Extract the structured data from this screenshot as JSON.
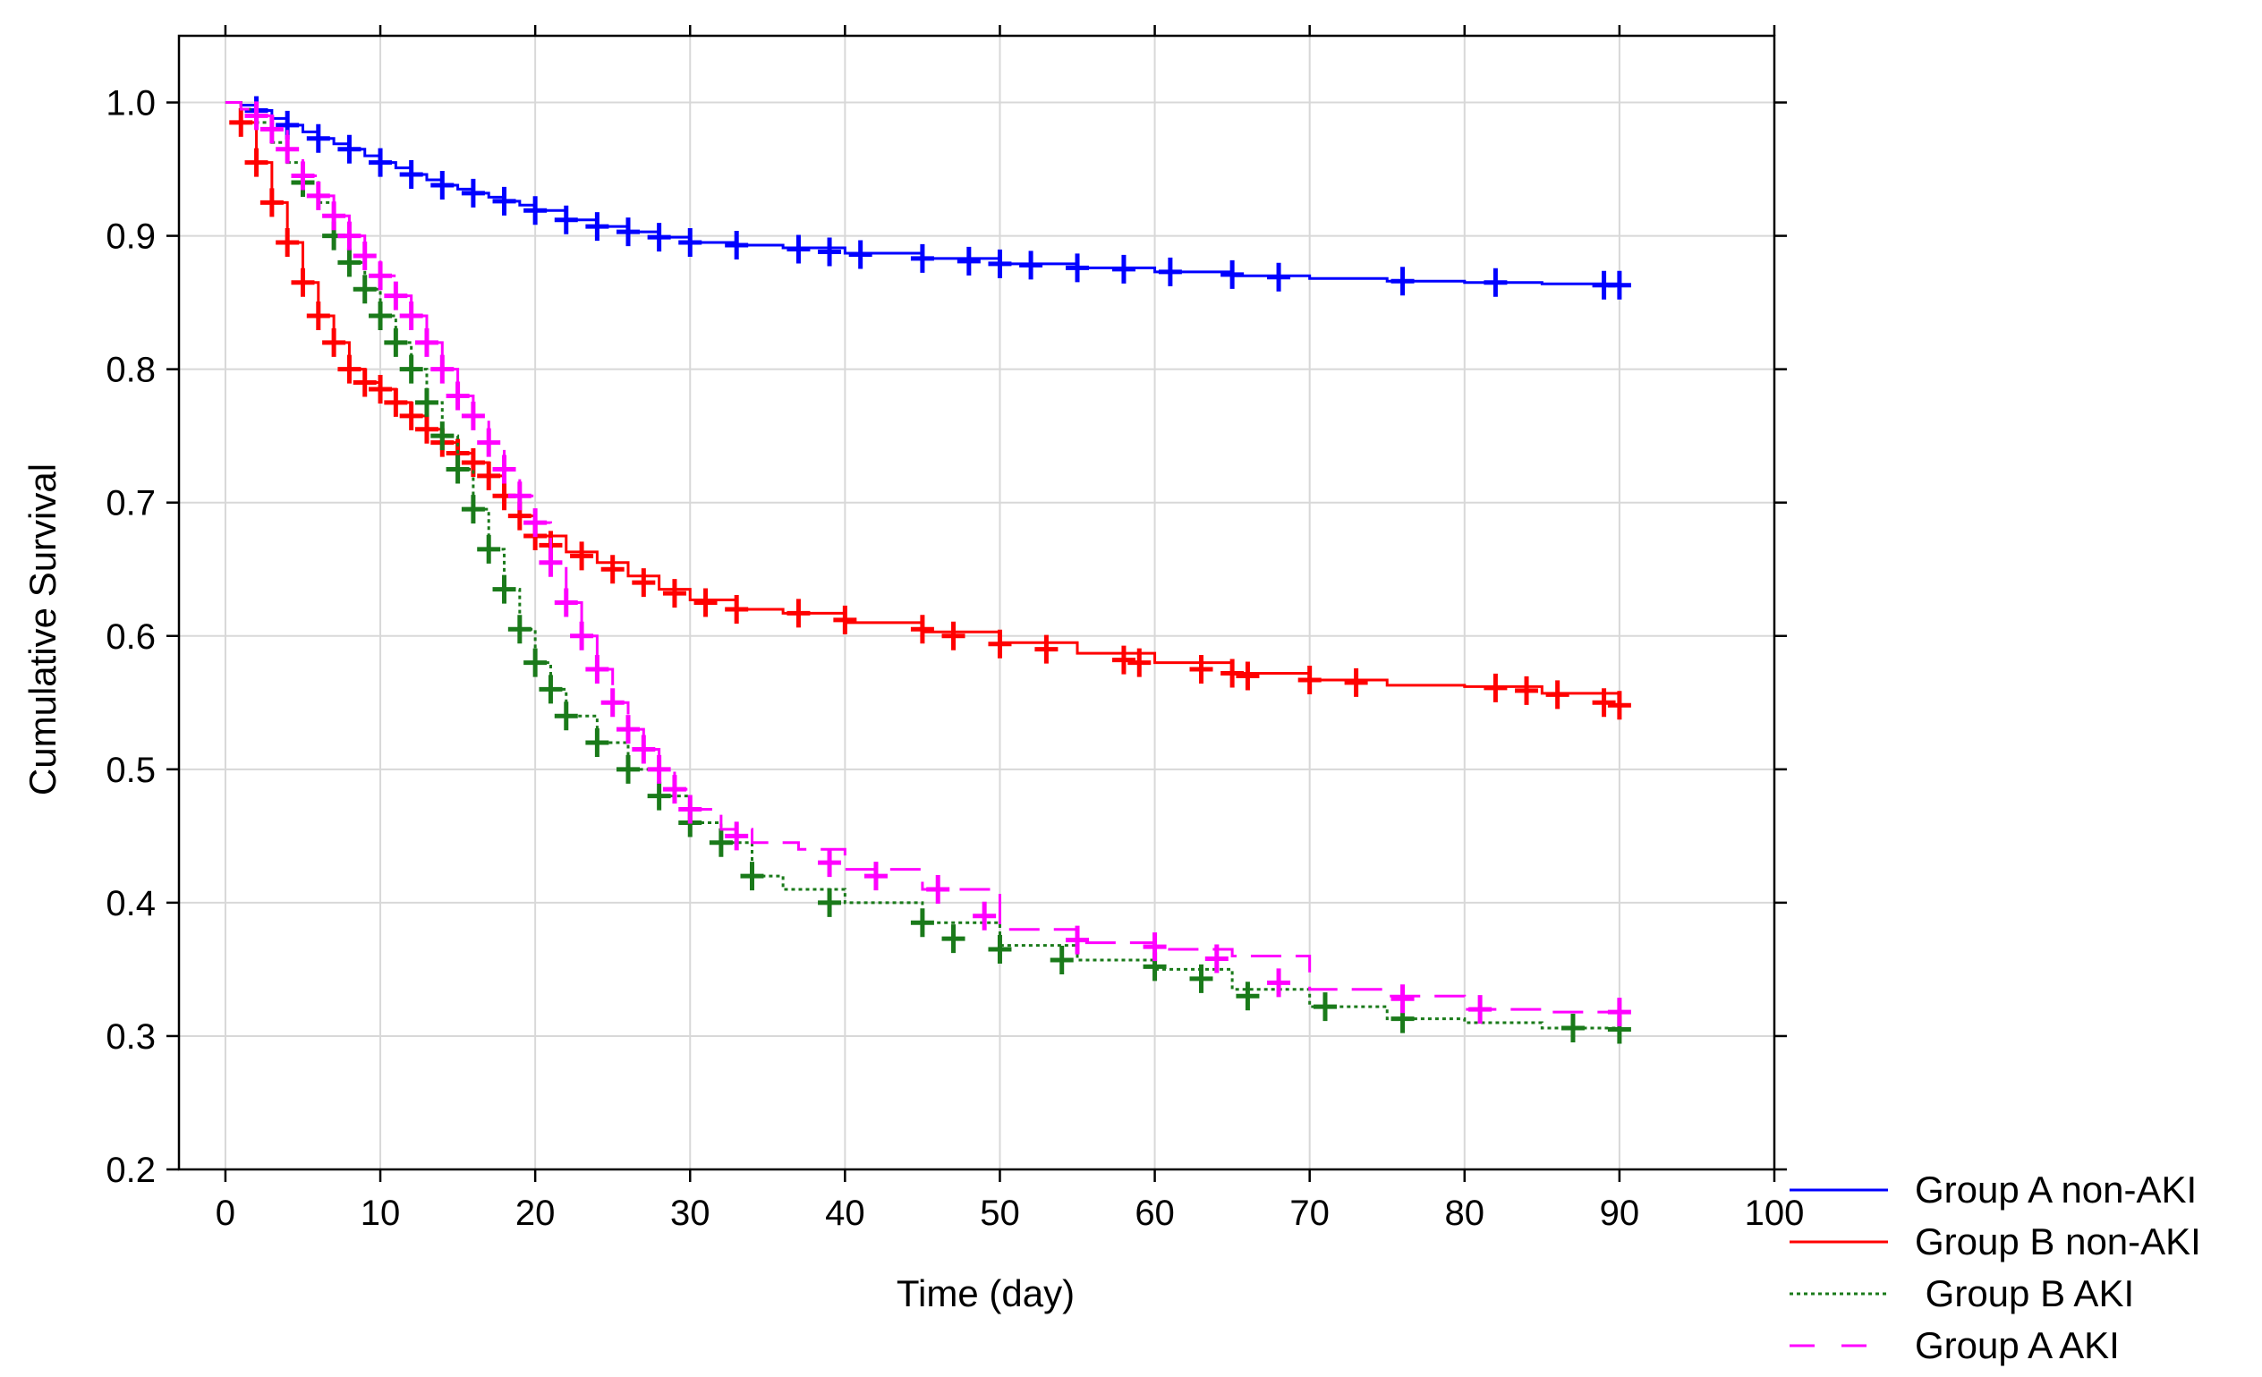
{
  "chart_data": {
    "type": "line",
    "title": "",
    "xlabel": "Time (day)",
    "ylabel": "Cumulative Survival",
    "xlim": [
      -3,
      100
    ],
    "ylim": [
      0.2,
      1.05
    ],
    "xticks": [
      0,
      10,
      20,
      30,
      40,
      50,
      60,
      70,
      80,
      90,
      100
    ],
    "yticks": [
      0.2,
      0.3,
      0.4,
      0.5,
      0.6,
      0.7,
      0.8,
      0.9,
      1.0
    ],
    "xtick_labels": [
      "0",
      "10",
      "20",
      "30",
      "40",
      "50",
      "60",
      "70",
      "80",
      "90",
      "100"
    ],
    "ytick_labels": [
      "0.2",
      "0.3",
      "0.4",
      "0.5",
      "0.6",
      "0.7",
      "0.8",
      "0.9",
      "1.0"
    ],
    "grid": true,
    "legend_position": "bottom-right outside",
    "series": [
      {
        "name": "Group A non-AKI",
        "color": "#0000ff",
        "dash": "solid",
        "x": [
          0,
          1,
          2,
          3,
          4,
          5,
          6,
          7,
          8,
          9,
          10,
          11,
          12,
          13,
          14,
          15,
          16,
          17,
          18,
          19,
          20,
          22,
          24,
          26,
          28,
          30,
          33,
          36,
          40,
          45,
          50,
          55,
          60,
          65,
          70,
          75,
          80,
          85,
          90
        ],
        "y": [
          1.0,
          0.998,
          0.994,
          0.988,
          0.983,
          0.978,
          0.973,
          0.969,
          0.965,
          0.96,
          0.955,
          0.951,
          0.946,
          0.942,
          0.938,
          0.935,
          0.932,
          0.929,
          0.926,
          0.923,
          0.919,
          0.912,
          0.907,
          0.903,
          0.899,
          0.895,
          0.893,
          0.891,
          0.887,
          0.883,
          0.879,
          0.876,
          0.873,
          0.87,
          0.868,
          0.866,
          0.865,
          0.864,
          0.863
        ],
        "censor_x": [
          2,
          4,
          6,
          8,
          10,
          12,
          14,
          16,
          18,
          20,
          22,
          24,
          26,
          28,
          30,
          33,
          37,
          39,
          41,
          45,
          48,
          50,
          52,
          55,
          58,
          61,
          65,
          68,
          76,
          82,
          89,
          90
        ],
        "censor_y": [
          0.994,
          0.983,
          0.973,
          0.965,
          0.955,
          0.946,
          0.938,
          0.932,
          0.926,
          0.919,
          0.912,
          0.907,
          0.903,
          0.899,
          0.895,
          0.893,
          0.89,
          0.888,
          0.886,
          0.883,
          0.881,
          0.879,
          0.878,
          0.876,
          0.875,
          0.873,
          0.871,
          0.869,
          0.866,
          0.865,
          0.863,
          0.863
        ]
      },
      {
        "name": "Group B non-AKI",
        "color": "#ff0000",
        "dash": "solid",
        "x": [
          0,
          1,
          2,
          3,
          4,
          5,
          6,
          7,
          8,
          9,
          10,
          11,
          12,
          13,
          14,
          15,
          16,
          17,
          18,
          19,
          20,
          22,
          24,
          26,
          28,
          30,
          33,
          36,
          40,
          45,
          50,
          55,
          60,
          65,
          70,
          75,
          80,
          85,
          90
        ],
        "y": [
          1.0,
          0.985,
          0.955,
          0.925,
          0.895,
          0.865,
          0.84,
          0.82,
          0.8,
          0.79,
          0.785,
          0.775,
          0.765,
          0.755,
          0.745,
          0.737,
          0.73,
          0.72,
          0.705,
          0.69,
          0.675,
          0.663,
          0.655,
          0.645,
          0.635,
          0.627,
          0.62,
          0.617,
          0.61,
          0.603,
          0.595,
          0.587,
          0.58,
          0.572,
          0.567,
          0.563,
          0.562,
          0.557,
          0.548
        ],
        "censor_x": [
          1,
          2,
          3,
          4,
          5,
          6,
          7,
          8,
          9,
          10,
          11,
          12,
          13,
          14,
          15,
          16,
          17,
          18,
          19,
          20,
          21,
          23,
          25,
          27,
          29,
          31,
          33,
          37,
          40,
          45,
          47,
          50,
          53,
          58,
          59,
          63,
          65,
          66,
          70,
          73,
          82,
          84,
          86,
          89,
          90
        ],
        "censor_y": [
          0.985,
          0.955,
          0.925,
          0.895,
          0.865,
          0.84,
          0.82,
          0.8,
          0.79,
          0.785,
          0.775,
          0.765,
          0.755,
          0.745,
          0.737,
          0.73,
          0.72,
          0.705,
          0.69,
          0.675,
          0.668,
          0.66,
          0.65,
          0.64,
          0.632,
          0.625,
          0.62,
          0.617,
          0.612,
          0.605,
          0.6,
          0.594,
          0.59,
          0.582,
          0.58,
          0.575,
          0.572,
          0.57,
          0.567,
          0.565,
          0.561,
          0.559,
          0.556,
          0.55,
          0.548
        ]
      },
      {
        "name": " Group B AKI",
        "color": "#1a7a1a",
        "dash": "dotted",
        "x": [
          0,
          1,
          2,
          3,
          4,
          5,
          6,
          7,
          8,
          9,
          10,
          11,
          12,
          13,
          14,
          15,
          16,
          17,
          18,
          19,
          20,
          21,
          22,
          24,
          26,
          28,
          30,
          32,
          34,
          36,
          40,
          45,
          50,
          55,
          60,
          65,
          70,
          75,
          80,
          85,
          90
        ],
        "y": [
          1.0,
          0.995,
          0.985,
          0.97,
          0.955,
          0.94,
          0.925,
          0.9,
          0.88,
          0.86,
          0.84,
          0.82,
          0.8,
          0.775,
          0.75,
          0.725,
          0.695,
          0.665,
          0.635,
          0.605,
          0.58,
          0.56,
          0.54,
          0.52,
          0.5,
          0.48,
          0.46,
          0.445,
          0.42,
          0.41,
          0.4,
          0.385,
          0.368,
          0.357,
          0.35,
          0.335,
          0.322,
          0.313,
          0.31,
          0.306,
          0.305
        ],
        "censor_x": [
          5,
          7,
          8,
          9,
          10,
          11,
          12,
          13,
          14,
          15,
          16,
          17,
          18,
          19,
          20,
          21,
          22,
          24,
          26,
          28,
          30,
          32,
          34,
          39,
          45,
          47,
          50,
          54,
          60,
          63,
          66,
          71,
          76,
          87,
          90
        ],
        "censor_y": [
          0.94,
          0.9,
          0.88,
          0.86,
          0.84,
          0.82,
          0.8,
          0.775,
          0.75,
          0.725,
          0.695,
          0.665,
          0.635,
          0.605,
          0.58,
          0.56,
          0.54,
          0.52,
          0.5,
          0.48,
          0.46,
          0.445,
          0.42,
          0.4,
          0.385,
          0.373,
          0.365,
          0.357,
          0.352,
          0.343,
          0.33,
          0.322,
          0.313,
          0.306,
          0.305
        ]
      },
      {
        "name": "Group A AKI",
        "color": "#ff00ff",
        "dash": "dashed",
        "x": [
          0,
          1,
          2,
          3,
          4,
          5,
          6,
          7,
          8,
          9,
          10,
          11,
          12,
          13,
          14,
          15,
          16,
          17,
          18,
          19,
          20,
          21,
          22,
          23,
          24,
          25,
          26,
          27,
          28,
          29,
          30,
          32,
          34,
          37,
          40,
          45,
          50,
          55,
          60,
          65,
          70,
          75,
          80,
          85,
          90
        ],
        "y": [
          1.0,
          0.995,
          0.99,
          0.98,
          0.965,
          0.945,
          0.93,
          0.915,
          0.9,
          0.885,
          0.87,
          0.855,
          0.84,
          0.82,
          0.8,
          0.78,
          0.765,
          0.745,
          0.725,
          0.705,
          0.685,
          0.655,
          0.625,
          0.6,
          0.575,
          0.55,
          0.53,
          0.515,
          0.5,
          0.485,
          0.47,
          0.455,
          0.445,
          0.44,
          0.425,
          0.41,
          0.38,
          0.37,
          0.365,
          0.36,
          0.335,
          0.33,
          0.32,
          0.318,
          0.318
        ],
        "censor_x": [
          2,
          3,
          4,
          5,
          6,
          7,
          8,
          9,
          10,
          11,
          12,
          13,
          14,
          15,
          16,
          17,
          18,
          19,
          20,
          21,
          22,
          23,
          24,
          25,
          26,
          27,
          28,
          29,
          30,
          33,
          39,
          42,
          46,
          49,
          55,
          60,
          64,
          68,
          76,
          81,
          90
        ],
        "censor_y": [
          0.99,
          0.98,
          0.965,
          0.945,
          0.93,
          0.915,
          0.9,
          0.885,
          0.87,
          0.855,
          0.84,
          0.82,
          0.8,
          0.78,
          0.765,
          0.745,
          0.725,
          0.705,
          0.685,
          0.655,
          0.625,
          0.6,
          0.575,
          0.55,
          0.53,
          0.515,
          0.5,
          0.485,
          0.47,
          0.45,
          0.43,
          0.42,
          0.41,
          0.39,
          0.372,
          0.367,
          0.358,
          0.34,
          0.328,
          0.32,
          0.318
        ]
      }
    ]
  }
}
